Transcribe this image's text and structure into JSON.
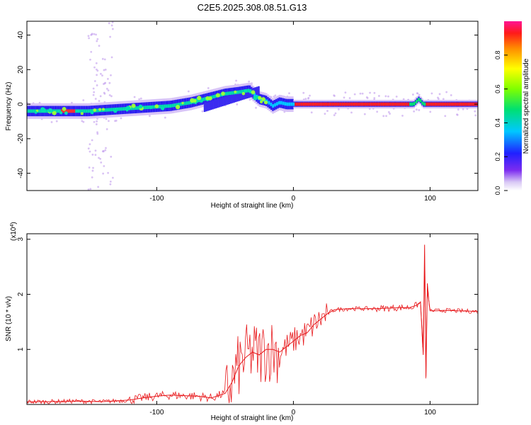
{
  "title": "C2E5.2025.308.08.51.G13",
  "chart_data": [
    {
      "type": "heatmap",
      "xlabel": "Height of straight line (km)",
      "ylabel": "Frequency (Hz)",
      "xlim": [
        -195,
        135
      ],
      "ylim": [
        -50,
        48
      ],
      "xticks": [
        -100,
        0,
        100
      ],
      "yticks": [
        -40,
        -20,
        0,
        20,
        40
      ],
      "colorbar": {
        "label": "Normalized spectral amplitude",
        "range": [
          0,
          1
        ],
        "ticks": [
          "0.0",
          "0.2",
          "0.4",
          "0.6",
          "0.8"
        ]
      },
      "ridge_x": [
        -195,
        -170,
        -150,
        -130,
        -110,
        -90,
        -75,
        -60,
        -50,
        -40,
        -32,
        -25,
        -20,
        -15,
        -10,
        -5,
        0,
        10,
        30,
        50,
        70,
        88,
        92,
        95,
        100,
        120,
        135
      ],
      "ridge_y": [
        -4,
        -4,
        -4,
        -3,
        -2,
        -1,
        1,
        4,
        6,
        7,
        8,
        3,
        2,
        -1,
        1,
        0,
        0,
        0,
        0,
        0,
        0,
        0,
        3,
        0,
        0,
        0,
        0
      ]
    },
    {
      "type": "line",
      "xlabel": "Height of straight line (km)",
      "ylabel": "SNR (10 * v/v)",
      "y_multiplier": "(x10",
      "y_multiplier_exp": "4",
      "y_multiplier_close": ")",
      "xlim": [
        -195,
        135
      ],
      "ylim": [
        0,
        3.1
      ],
      "xticks": [
        -100,
        0,
        100
      ],
      "yticks": [
        1,
        2,
        3
      ],
      "series": [
        {
          "color": "#e8191c",
          "x": [
            -195,
            -180,
            -160,
            -140,
            -120,
            -110,
            -100,
            -90,
            -80,
            -70,
            -60,
            -50,
            -45,
            -40,
            -35,
            -30,
            -25,
            -20,
            -15,
            -10,
            -5,
            0,
            5,
            10,
            15,
            20,
            25,
            30,
            40,
            50,
            60,
            70,
            80,
            85,
            90,
            93,
            95,
            96,
            97,
            98,
            99,
            100,
            105,
            110,
            120,
            135
          ],
          "y": [
            0.05,
            0.05,
            0.06,
            0.05,
            0.08,
            0.12,
            0.15,
            0.17,
            0.16,
            0.15,
            0.12,
            0.2,
            0.4,
            0.7,
            0.85,
            0.95,
            0.9,
            1.0,
            1.0,
            0.95,
            1.05,
            1.15,
            1.25,
            1.3,
            1.45,
            1.55,
            1.65,
            1.72,
            1.74,
            1.74,
            1.74,
            1.75,
            1.76,
            1.76,
            1.8,
            1.85,
            0.9,
            2.9,
            0.5,
            2.2,
            1.9,
            1.7,
            1.7,
            1.71,
            1.7,
            1.69
          ]
        }
      ]
    }
  ]
}
